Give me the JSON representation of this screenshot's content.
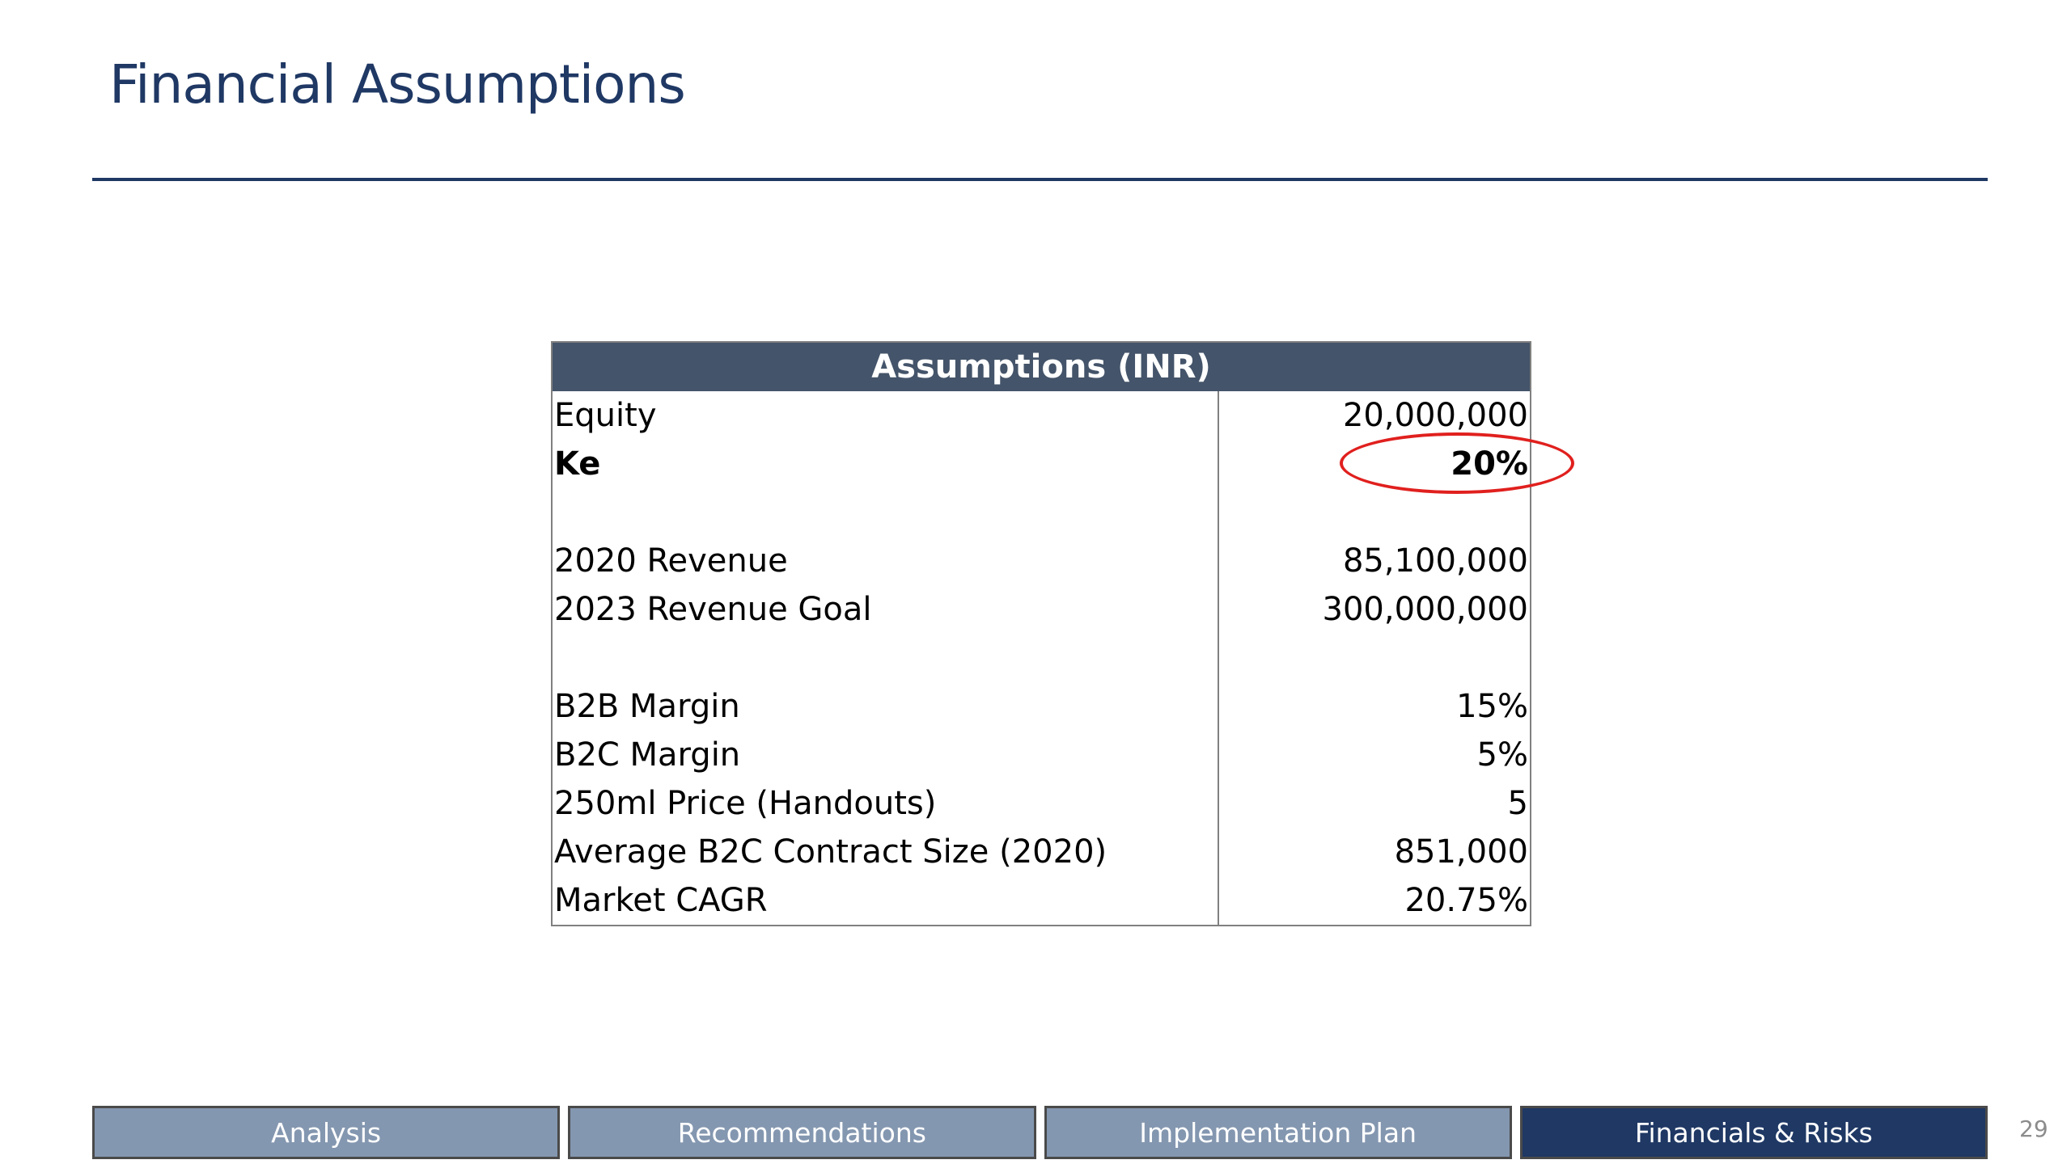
{
  "slide": {
    "title": "Financial Assumptions",
    "page_number": "29"
  },
  "table": {
    "header": "Assumptions (INR)",
    "rows": [
      {
        "label": "Equity",
        "value": "20,000,000",
        "bold": false
      },
      {
        "label": "Ke",
        "value": "20%",
        "bold": true,
        "highlighted": true
      },
      {
        "label": "",
        "value": ""
      },
      {
        "label": "2020 Revenue",
        "value": "85,100,000"
      },
      {
        "label": "2023 Revenue Goal",
        "value": "300,000,000"
      },
      {
        "label": "",
        "value": ""
      },
      {
        "label": "B2B Margin",
        "value": "15%"
      },
      {
        "label": "B2C Margin",
        "value": "5%"
      },
      {
        "label": "250ml Price (Handouts)",
        "value": "5"
      },
      {
        "label": "Average B2C Contract Size (2020)",
        "value": "851,000"
      },
      {
        "label": "Market CAGR",
        "value": "20.75%"
      }
    ]
  },
  "nav": {
    "tabs": [
      {
        "label": "Analysis",
        "active": false
      },
      {
        "label": "Recommendations",
        "active": false
      },
      {
        "label": "Implementation Plan",
        "active": false
      },
      {
        "label": "Financials & Risks",
        "active": true
      }
    ]
  },
  "colors": {
    "title": "#1f3864",
    "header_bg": "#44546a",
    "tab_inactive": "#8497b0",
    "tab_active": "#1f3864",
    "highlight": "#e0201e"
  }
}
